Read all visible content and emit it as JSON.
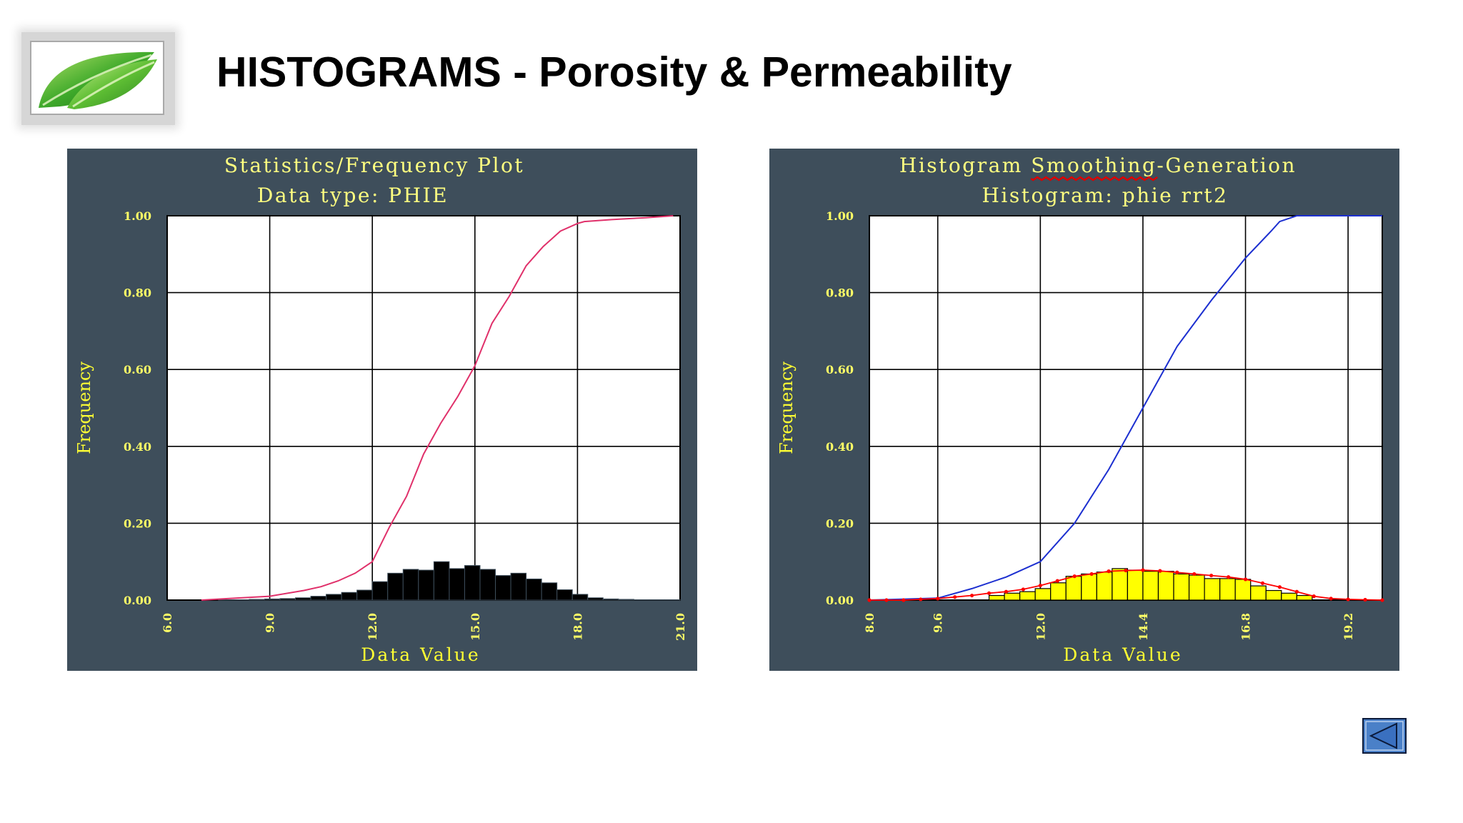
{
  "slide": {
    "title": "HISTOGRAMS - Porosity & Permeability"
  },
  "colors": {
    "chart_bg": "#3e4e5b",
    "chart_title": "#ffff80",
    "axis_label": "#ffff33",
    "tick_label": "#ffff66",
    "plot_bg": "#ffffff",
    "grid": "#000000",
    "left_bars": "#000000",
    "left_cdf": "#e0306a",
    "right_bars": "#ffff00",
    "right_cdf": "#1c2fd0",
    "right_smooth": "#ff0000",
    "spellcheck_underline": "#dd0000",
    "back_button": "#4a80c8"
  },
  "chart_data": [
    {
      "type": "bar",
      "title": "Statistics/Frequency Plot",
      "subtitle": "Data type: PHIE",
      "xlabel": "Data Value",
      "ylabel": "Frequency",
      "xlim": [
        6.0,
        21.0
      ],
      "ylim": [
        0.0,
        1.0
      ],
      "x_ticks": [
        "6.0",
        "9.0",
        "12.0",
        "15.0",
        "18.0",
        "21.0"
      ],
      "y_ticks": [
        "0.00",
        "0.20",
        "0.40",
        "0.60",
        "0.80",
        "1.00"
      ],
      "bin_width": 0.45,
      "bins": {
        "x_start": [
          7.5,
          7.95,
          8.4,
          8.85,
          9.3,
          9.75,
          10.2,
          10.65,
          11.1,
          11.55,
          12.0,
          12.45,
          12.9,
          13.35,
          13.8,
          14.25,
          14.7,
          15.15,
          15.6,
          16.05,
          16.5,
          16.95,
          17.4,
          17.85,
          18.3,
          18.75,
          19.2,
          19.65,
          20.1,
          20.55
        ],
        "frequency": [
          0.001,
          0.001,
          0.002,
          0.003,
          0.004,
          0.006,
          0.01,
          0.015,
          0.02,
          0.026,
          0.048,
          0.07,
          0.08,
          0.078,
          0.1,
          0.082,
          0.09,
          0.08,
          0.064,
          0.07,
          0.055,
          0.045,
          0.027,
          0.015,
          0.006,
          0.003,
          0.002,
          0.001,
          0.001,
          0.001
        ]
      },
      "cumulative": {
        "name": "cumulative frequency",
        "x": [
          7.0,
          8.0,
          9.0,
          10.0,
          10.5,
          11.0,
          11.5,
          12.0,
          12.5,
          13.0,
          13.5,
          14.0,
          14.5,
          15.0,
          15.5,
          16.0,
          16.5,
          17.0,
          17.5,
          18.0,
          18.2,
          19.0,
          20.0,
          20.8
        ],
        "y": [
          0.0,
          0.005,
          0.01,
          0.025,
          0.035,
          0.05,
          0.07,
          0.1,
          0.19,
          0.27,
          0.38,
          0.46,
          0.53,
          0.61,
          0.72,
          0.79,
          0.87,
          0.92,
          0.96,
          0.98,
          0.985,
          0.99,
          0.995,
          1.0
        ]
      }
    },
    {
      "type": "bar",
      "title": "Histogram Smoothing-Generation",
      "title_parts": [
        "Histogram ",
        "Smoothing",
        "-Generation"
      ],
      "subtitle": "Histogram: phie rrt2",
      "xlabel": "Data Value",
      "ylabel": "Frequency",
      "xlim": [
        8.0,
        20.0
      ],
      "ylim": [
        0.0,
        1.0
      ],
      "x_ticks": [
        "8.0",
        "9.6",
        "12.0",
        "14.4",
        "16.8",
        "19.2"
      ],
      "x_tick_values": [
        8.0,
        9.6,
        12.0,
        14.4,
        16.8,
        19.2
      ],
      "y_ticks": [
        "0.00",
        "0.20",
        "0.40",
        "0.60",
        "0.80",
        "1.00"
      ],
      "bin_width": 0.36,
      "bins": {
        "x_start": [
          10.8,
          11.16,
          11.52,
          11.88,
          12.24,
          12.6,
          12.96,
          13.32,
          13.68,
          14.04,
          14.4,
          14.76,
          15.12,
          15.48,
          15.84,
          16.2,
          16.56,
          16.92,
          17.28,
          17.64,
          18.0
        ],
        "frequency": [
          0.012,
          0.018,
          0.022,
          0.03,
          0.045,
          0.062,
          0.068,
          0.073,
          0.082,
          0.078,
          0.075,
          0.075,
          0.068,
          0.065,
          0.056,
          0.056,
          0.054,
          0.037,
          0.025,
          0.018,
          0.012
        ]
      },
      "cumulative": {
        "name": "cumulative frequency",
        "x": [
          8.0,
          9.6,
          10.4,
          11.2,
          12.0,
          12.8,
          13.6,
          14.4,
          15.2,
          16.0,
          16.8,
          17.4,
          17.6,
          18.0,
          19.2,
          20.0
        ],
        "y": [
          0.0,
          0.005,
          0.03,
          0.06,
          0.1,
          0.2,
          0.34,
          0.5,
          0.66,
          0.78,
          0.89,
          0.96,
          0.985,
          1.0,
          1.0,
          1.0
        ]
      },
      "smoothed": {
        "name": "smoothed histogram",
        "x": [
          8.0,
          8.4,
          8.8,
          9.2,
          9.6,
          10.0,
          10.4,
          10.8,
          11.2,
          11.6,
          12.0,
          12.4,
          12.8,
          13.2,
          13.6,
          14.0,
          14.4,
          14.8,
          15.2,
          15.6,
          16.0,
          16.4,
          16.8,
          17.2,
          17.6,
          18.0,
          18.4,
          18.8,
          19.2,
          19.6,
          20.0
        ],
        "y": [
          0.0,
          0.0,
          0.0,
          0.002,
          0.004,
          0.008,
          0.012,
          0.018,
          0.022,
          0.028,
          0.038,
          0.05,
          0.062,
          0.068,
          0.075,
          0.077,
          0.078,
          0.076,
          0.072,
          0.068,
          0.064,
          0.06,
          0.054,
          0.044,
          0.034,
          0.022,
          0.01,
          0.004,
          0.002,
          0.001,
          0.0
        ]
      }
    }
  ]
}
